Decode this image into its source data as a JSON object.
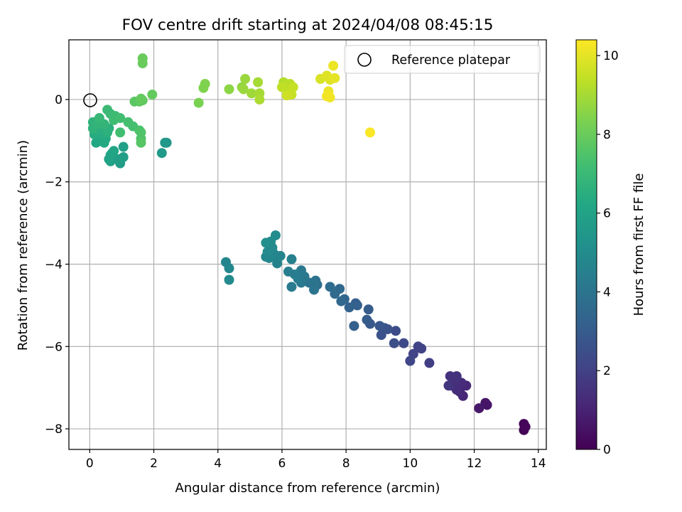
{
  "chart_data": {
    "type": "scatter",
    "title": "FOV centre drift starting at 2024/04/08 08:45:15",
    "xlabel": "Angular distance from reference (arcmin)",
    "ylabel": "Rotation from reference (arcmin)",
    "xlim": [
      -0.65,
      14.25
    ],
    "ylim": [
      -8.5,
      1.45
    ],
    "x_ticks": [
      0,
      2,
      4,
      6,
      8,
      10,
      12,
      14
    ],
    "y_ticks": [
      0,
      -2,
      -4,
      -6,
      -8
    ],
    "x_tick_labels": [
      "0",
      "2",
      "4",
      "6",
      "8",
      "10",
      "12",
      "14"
    ],
    "y_tick_labels": [
      "0",
      "−2",
      "−4",
      "−6",
      "−8"
    ],
    "grid": true,
    "legend": {
      "position": "top-right",
      "label": "Reference platepar"
    },
    "reference_point": {
      "x": 0,
      "y": 0
    },
    "colorbar": {
      "label": "Hours from first FF file",
      "colormap": "viridis",
      "range": [
        0,
        10.4
      ],
      "ticks": [
        0,
        2,
        4,
        6,
        8,
        10
      ],
      "tick_labels": [
        "0",
        "2",
        "4",
        "6",
        "8",
        "10"
      ]
    },
    "series": [
      {
        "points": [
          {
            "x": 13.55,
            "y": -7.88,
            "c": 0.1
          },
          {
            "x": 13.55,
            "y": -8.03,
            "c": 0.1
          },
          {
            "x": 13.6,
            "y": -7.95,
            "c": 0.2
          },
          {
            "x": 12.4,
            "y": -7.42,
            "c": 0.6
          },
          {
            "x": 12.35,
            "y": -7.37,
            "c": 0.6
          },
          {
            "x": 12.15,
            "y": -7.5,
            "c": 0.7
          },
          {
            "x": 11.65,
            "y": -7.2,
            "c": 1.1
          },
          {
            "x": 11.55,
            "y": -7.1,
            "c": 1.2
          },
          {
            "x": 11.75,
            "y": -6.95,
            "c": 1.2
          },
          {
            "x": 11.6,
            "y": -6.88,
            "c": 1.3
          },
          {
            "x": 11.45,
            "y": -7.05,
            "c": 1.3
          },
          {
            "x": 11.3,
            "y": -6.95,
            "c": 1.4
          },
          {
            "x": 11.4,
            "y": -6.82,
            "c": 1.4
          },
          {
            "x": 11.25,
            "y": -6.72,
            "c": 1.5
          },
          {
            "x": 11.45,
            "y": -6.72,
            "c": 1.5
          },
          {
            "x": 11.2,
            "y": -6.95,
            "c": 1.6
          },
          {
            "x": 10.6,
            "y": -6.4,
            "c": 1.9
          },
          {
            "x": 10.35,
            "y": -6.05,
            "c": 2.0
          },
          {
            "x": 10.25,
            "y": -6.0,
            "c": 2.1
          },
          {
            "x": 10.1,
            "y": -6.18,
            "c": 2.1
          },
          {
            "x": 10.0,
            "y": -6.35,
            "c": 2.2
          },
          {
            "x": 9.8,
            "y": -5.92,
            "c": 2.3
          },
          {
            "x": 9.55,
            "y": -5.62,
            "c": 2.4
          },
          {
            "x": 9.5,
            "y": -5.92,
            "c": 2.5
          },
          {
            "x": 9.3,
            "y": -5.58,
            "c": 2.6
          },
          {
            "x": 9.1,
            "y": -5.72,
            "c": 2.6
          },
          {
            "x": 9.2,
            "y": -5.55,
            "c": 2.7
          },
          {
            "x": 9.05,
            "y": -5.5,
            "c": 2.8
          },
          {
            "x": 8.75,
            "y": -5.45,
            "c": 2.9
          },
          {
            "x": 8.65,
            "y": -5.35,
            "c": 3.0
          },
          {
            "x": 8.7,
            "y": -5.1,
            "c": 3.0
          },
          {
            "x": 8.3,
            "y": -4.95,
            "c": 3.1
          },
          {
            "x": 8.25,
            "y": -5.5,
            "c": 3.2
          },
          {
            "x": 8.35,
            "y": -5.0,
            "c": 3.2
          },
          {
            "x": 8.1,
            "y": -5.05,
            "c": 3.3
          },
          {
            "x": 7.95,
            "y": -4.85,
            "c": 3.4
          },
          {
            "x": 7.85,
            "y": -4.9,
            "c": 3.5
          },
          {
            "x": 7.8,
            "y": -4.6,
            "c": 3.5
          },
          {
            "x": 7.65,
            "y": -4.72,
            "c": 3.6
          },
          {
            "x": 7.5,
            "y": -4.55,
            "c": 3.7
          },
          {
            "x": 7.1,
            "y": -4.5,
            "c": 3.8
          },
          {
            "x": 7.05,
            "y": -4.4,
            "c": 3.9
          },
          {
            "x": 7.0,
            "y": -4.62,
            "c": 4.0
          },
          {
            "x": 6.85,
            "y": -4.45,
            "c": 4.0
          },
          {
            "x": 6.7,
            "y": -4.3,
            "c": 4.1
          },
          {
            "x": 6.6,
            "y": -4.45,
            "c": 4.2
          },
          {
            "x": 6.6,
            "y": -4.15,
            "c": 4.2
          },
          {
            "x": 6.5,
            "y": -4.35,
            "c": 4.3
          },
          {
            "x": 6.3,
            "y": -4.55,
            "c": 4.3
          },
          {
            "x": 6.4,
            "y": -4.25,
            "c": 4.4
          },
          {
            "x": 6.2,
            "y": -4.18,
            "c": 4.4
          },
          {
            "x": 6.3,
            "y": -3.88,
            "c": 4.5
          },
          {
            "x": 5.85,
            "y": -3.98,
            "c": 4.6
          },
          {
            "x": 5.8,
            "y": -3.85,
            "c": 4.6
          },
          {
            "x": 5.95,
            "y": -3.8,
            "c": 4.7
          },
          {
            "x": 5.75,
            "y": -3.75,
            "c": 4.7
          },
          {
            "x": 5.6,
            "y": -3.85,
            "c": 4.8
          },
          {
            "x": 5.5,
            "y": -3.82,
            "c": 4.8
          },
          {
            "x": 5.55,
            "y": -3.7,
            "c": 4.9
          },
          {
            "x": 5.7,
            "y": -3.6,
            "c": 4.9
          },
          {
            "x": 5.65,
            "y": -3.45,
            "c": 5.0
          },
          {
            "x": 5.8,
            "y": -3.3,
            "c": 5.0
          },
          {
            "x": 5.5,
            "y": -3.48,
            "c": 5.1
          },
          {
            "x": 4.25,
            "y": -3.95,
            "c": 4.7
          },
          {
            "x": 4.35,
            "y": -4.1,
            "c": 4.8
          },
          {
            "x": 4.35,
            "y": -4.38,
            "c": 4.9
          },
          {
            "x": 2.4,
            "y": -1.05,
            "c": 5.4
          },
          {
            "x": 2.35,
            "y": -1.05,
            "c": 5.5
          },
          {
            "x": 2.25,
            "y": -1.3,
            "c": 5.6
          },
          {
            "x": 0.95,
            "y": -1.55,
            "c": 5.7
          },
          {
            "x": 0.9,
            "y": -1.45,
            "c": 5.8
          },
          {
            "x": 1.05,
            "y": -1.4,
            "c": 5.8
          },
          {
            "x": 1.05,
            "y": -1.15,
            "c": 5.9
          },
          {
            "x": 0.65,
            "y": -1.5,
            "c": 5.9
          },
          {
            "x": 0.6,
            "y": -1.45,
            "c": 6.0
          },
          {
            "x": 0.65,
            "y": -1.35,
            "c": 6.0
          },
          {
            "x": 0.75,
            "y": -1.25,
            "c": 6.1
          },
          {
            "x": 0.7,
            "y": -1.3,
            "c": 6.1
          },
          {
            "x": 0.2,
            "y": -1.05,
            "c": 6.2
          },
          {
            "x": 0.3,
            "y": -0.95,
            "c": 6.2
          },
          {
            "x": 0.45,
            "y": -1.05,
            "c": 6.3
          },
          {
            "x": 0.5,
            "y": -0.95,
            "c": 6.3
          },
          {
            "x": 0.35,
            "y": -0.85,
            "c": 6.4
          },
          {
            "x": 0.15,
            "y": -0.85,
            "c": 6.4
          },
          {
            "x": 0.25,
            "y": -0.75,
            "c": 6.5
          },
          {
            "x": 0.4,
            "y": -0.7,
            "c": 6.5
          },
          {
            "x": 0.55,
            "y": -0.8,
            "c": 6.6
          },
          {
            "x": 0.6,
            "y": -0.7,
            "c": 6.6
          },
          {
            "x": 0.1,
            "y": -0.7,
            "c": 6.7
          },
          {
            "x": 0.1,
            "y": -0.55,
            "c": 6.7
          },
          {
            "x": 0.25,
            "y": -0.6,
            "c": 6.8
          },
          {
            "x": 0.45,
            "y": -0.6,
            "c": 6.8
          },
          {
            "x": 0.3,
            "y": -0.45,
            "c": 6.9
          },
          {
            "x": 0.55,
            "y": -0.25,
            "c": 7.0
          },
          {
            "x": 0.65,
            "y": -0.35,
            "c": 7.0
          },
          {
            "x": 0.8,
            "y": -0.4,
            "c": 7.1
          },
          {
            "x": 0.75,
            "y": -0.5,
            "c": 7.1
          },
          {
            "x": 0.95,
            "y": -0.45,
            "c": 7.2
          },
          {
            "x": 0.95,
            "y": -0.8,
            "c": 7.2
          },
          {
            "x": 1.2,
            "y": -0.55,
            "c": 7.3
          },
          {
            "x": 1.35,
            "y": -0.65,
            "c": 7.3
          },
          {
            "x": 1.55,
            "y": -0.75,
            "c": 7.4
          },
          {
            "x": 1.6,
            "y": -0.8,
            "c": 7.5
          },
          {
            "x": 1.6,
            "y": -0.95,
            "c": 7.5
          },
          {
            "x": 1.6,
            "y": -1.05,
            "c": 7.6
          },
          {
            "x": 1.4,
            "y": -0.05,
            "c": 7.7
          },
          {
            "x": 1.55,
            "y": -0.05,
            "c": 7.8
          },
          {
            "x": 1.65,
            "y": -0.02,
            "c": 7.8
          },
          {
            "x": 1.95,
            "y": 0.12,
            "c": 7.9
          },
          {
            "x": 1.6,
            "y": 0.02,
            "c": 7.9
          },
          {
            "x": 1.65,
            "y": 0.88,
            "c": 8.0
          },
          {
            "x": 1.65,
            "y": 1.0,
            "c": 8.0
          },
          {
            "x": 3.4,
            "y": -0.08,
            "c": 8.3
          },
          {
            "x": 3.55,
            "y": 0.28,
            "c": 8.4
          },
          {
            "x": 3.6,
            "y": 0.38,
            "c": 8.4
          },
          {
            "x": 4.35,
            "y": 0.25,
            "c": 8.6
          },
          {
            "x": 4.75,
            "y": 0.3,
            "c": 8.7
          },
          {
            "x": 4.8,
            "y": 0.25,
            "c": 8.8
          },
          {
            "x": 4.85,
            "y": 0.5,
            "c": 8.8
          },
          {
            "x": 5.05,
            "y": 0.15,
            "c": 8.9
          },
          {
            "x": 5.25,
            "y": 0.42,
            "c": 9.0
          },
          {
            "x": 5.3,
            "y": 0.15,
            "c": 9.0
          },
          {
            "x": 5.3,
            "y": 0.0,
            "c": 9.1
          },
          {
            "x": 6.05,
            "y": 0.42,
            "c": 9.2
          },
          {
            "x": 6.15,
            "y": 0.35,
            "c": 9.3
          },
          {
            "x": 6.25,
            "y": 0.38,
            "c": 9.3
          },
          {
            "x": 6.0,
            "y": 0.3,
            "c": 9.4
          },
          {
            "x": 6.2,
            "y": 0.18,
            "c": 9.4
          },
          {
            "x": 6.35,
            "y": 0.3,
            "c": 9.5
          },
          {
            "x": 6.3,
            "y": 0.12,
            "c": 9.5
          },
          {
            "x": 6.15,
            "y": 0.1,
            "c": 9.6
          },
          {
            "x": 7.2,
            "y": 0.5,
            "c": 9.8
          },
          {
            "x": 7.4,
            "y": 0.58,
            "c": 9.9
          },
          {
            "x": 7.5,
            "y": 0.48,
            "c": 9.9
          },
          {
            "x": 7.65,
            "y": 0.52,
            "c": 10.0
          },
          {
            "x": 7.6,
            "y": 0.82,
            "c": 10.1
          },
          {
            "x": 7.45,
            "y": 0.2,
            "c": 10.1
          },
          {
            "x": 7.4,
            "y": 0.08,
            "c": 10.2
          },
          {
            "x": 7.5,
            "y": 0.05,
            "c": 10.2
          },
          {
            "x": 8.75,
            "y": -0.8,
            "c": 10.35
          }
        ]
      }
    ]
  }
}
